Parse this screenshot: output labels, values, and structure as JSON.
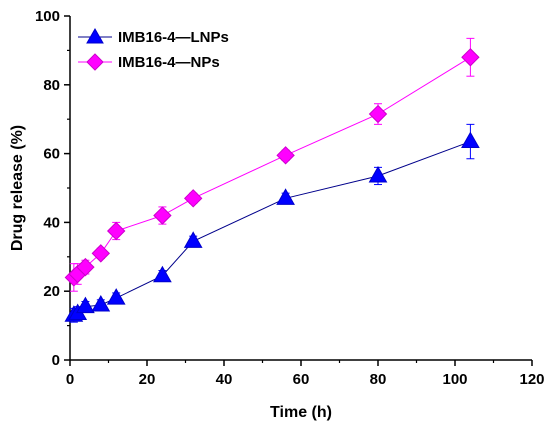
{
  "chart_data": {
    "type": "line",
    "title": "",
    "xlabel": "Time (h)",
    "ylabel": "Drug release (%)",
    "xlim": [
      0,
      120
    ],
    "ylim": [
      0,
      100
    ],
    "x_ticks": [
      "0",
      "20",
      "40",
      "60",
      "80",
      "100",
      "120"
    ],
    "y_ticks": [
      "0",
      "20",
      "40",
      "60",
      "80",
      "100"
    ],
    "grid": false,
    "legend_position": "top-left",
    "series": [
      {
        "name": "IMB16-4—LNPs",
        "color": "#0000ff",
        "marker": "triangle",
        "x": [
          1,
          2,
          4,
          8,
          12,
          24,
          32,
          56,
          80,
          104
        ],
        "y": [
          13,
          13.5,
          15.5,
          16,
          18,
          24.5,
          34.5,
          47,
          53.5,
          63.5
        ],
        "err": [
          2,
          2,
          1.5,
          1.5,
          1.5,
          1.5,
          1.5,
          1.5,
          2.5,
          5
        ]
      },
      {
        "name": "IMB16-4—NPs",
        "color": "#ff00ff",
        "marker": "diamond",
        "x": [
          1,
          2,
          4,
          8,
          12,
          24,
          32,
          56,
          80,
          104
        ],
        "y": [
          24,
          25,
          27,
          31,
          37.5,
          42,
          47,
          59.5,
          71.5,
          88
        ],
        "err": [
          4,
          3,
          2,
          1.5,
          2.5,
          2.5,
          1.5,
          1.5,
          3,
          5.5
        ]
      }
    ]
  }
}
